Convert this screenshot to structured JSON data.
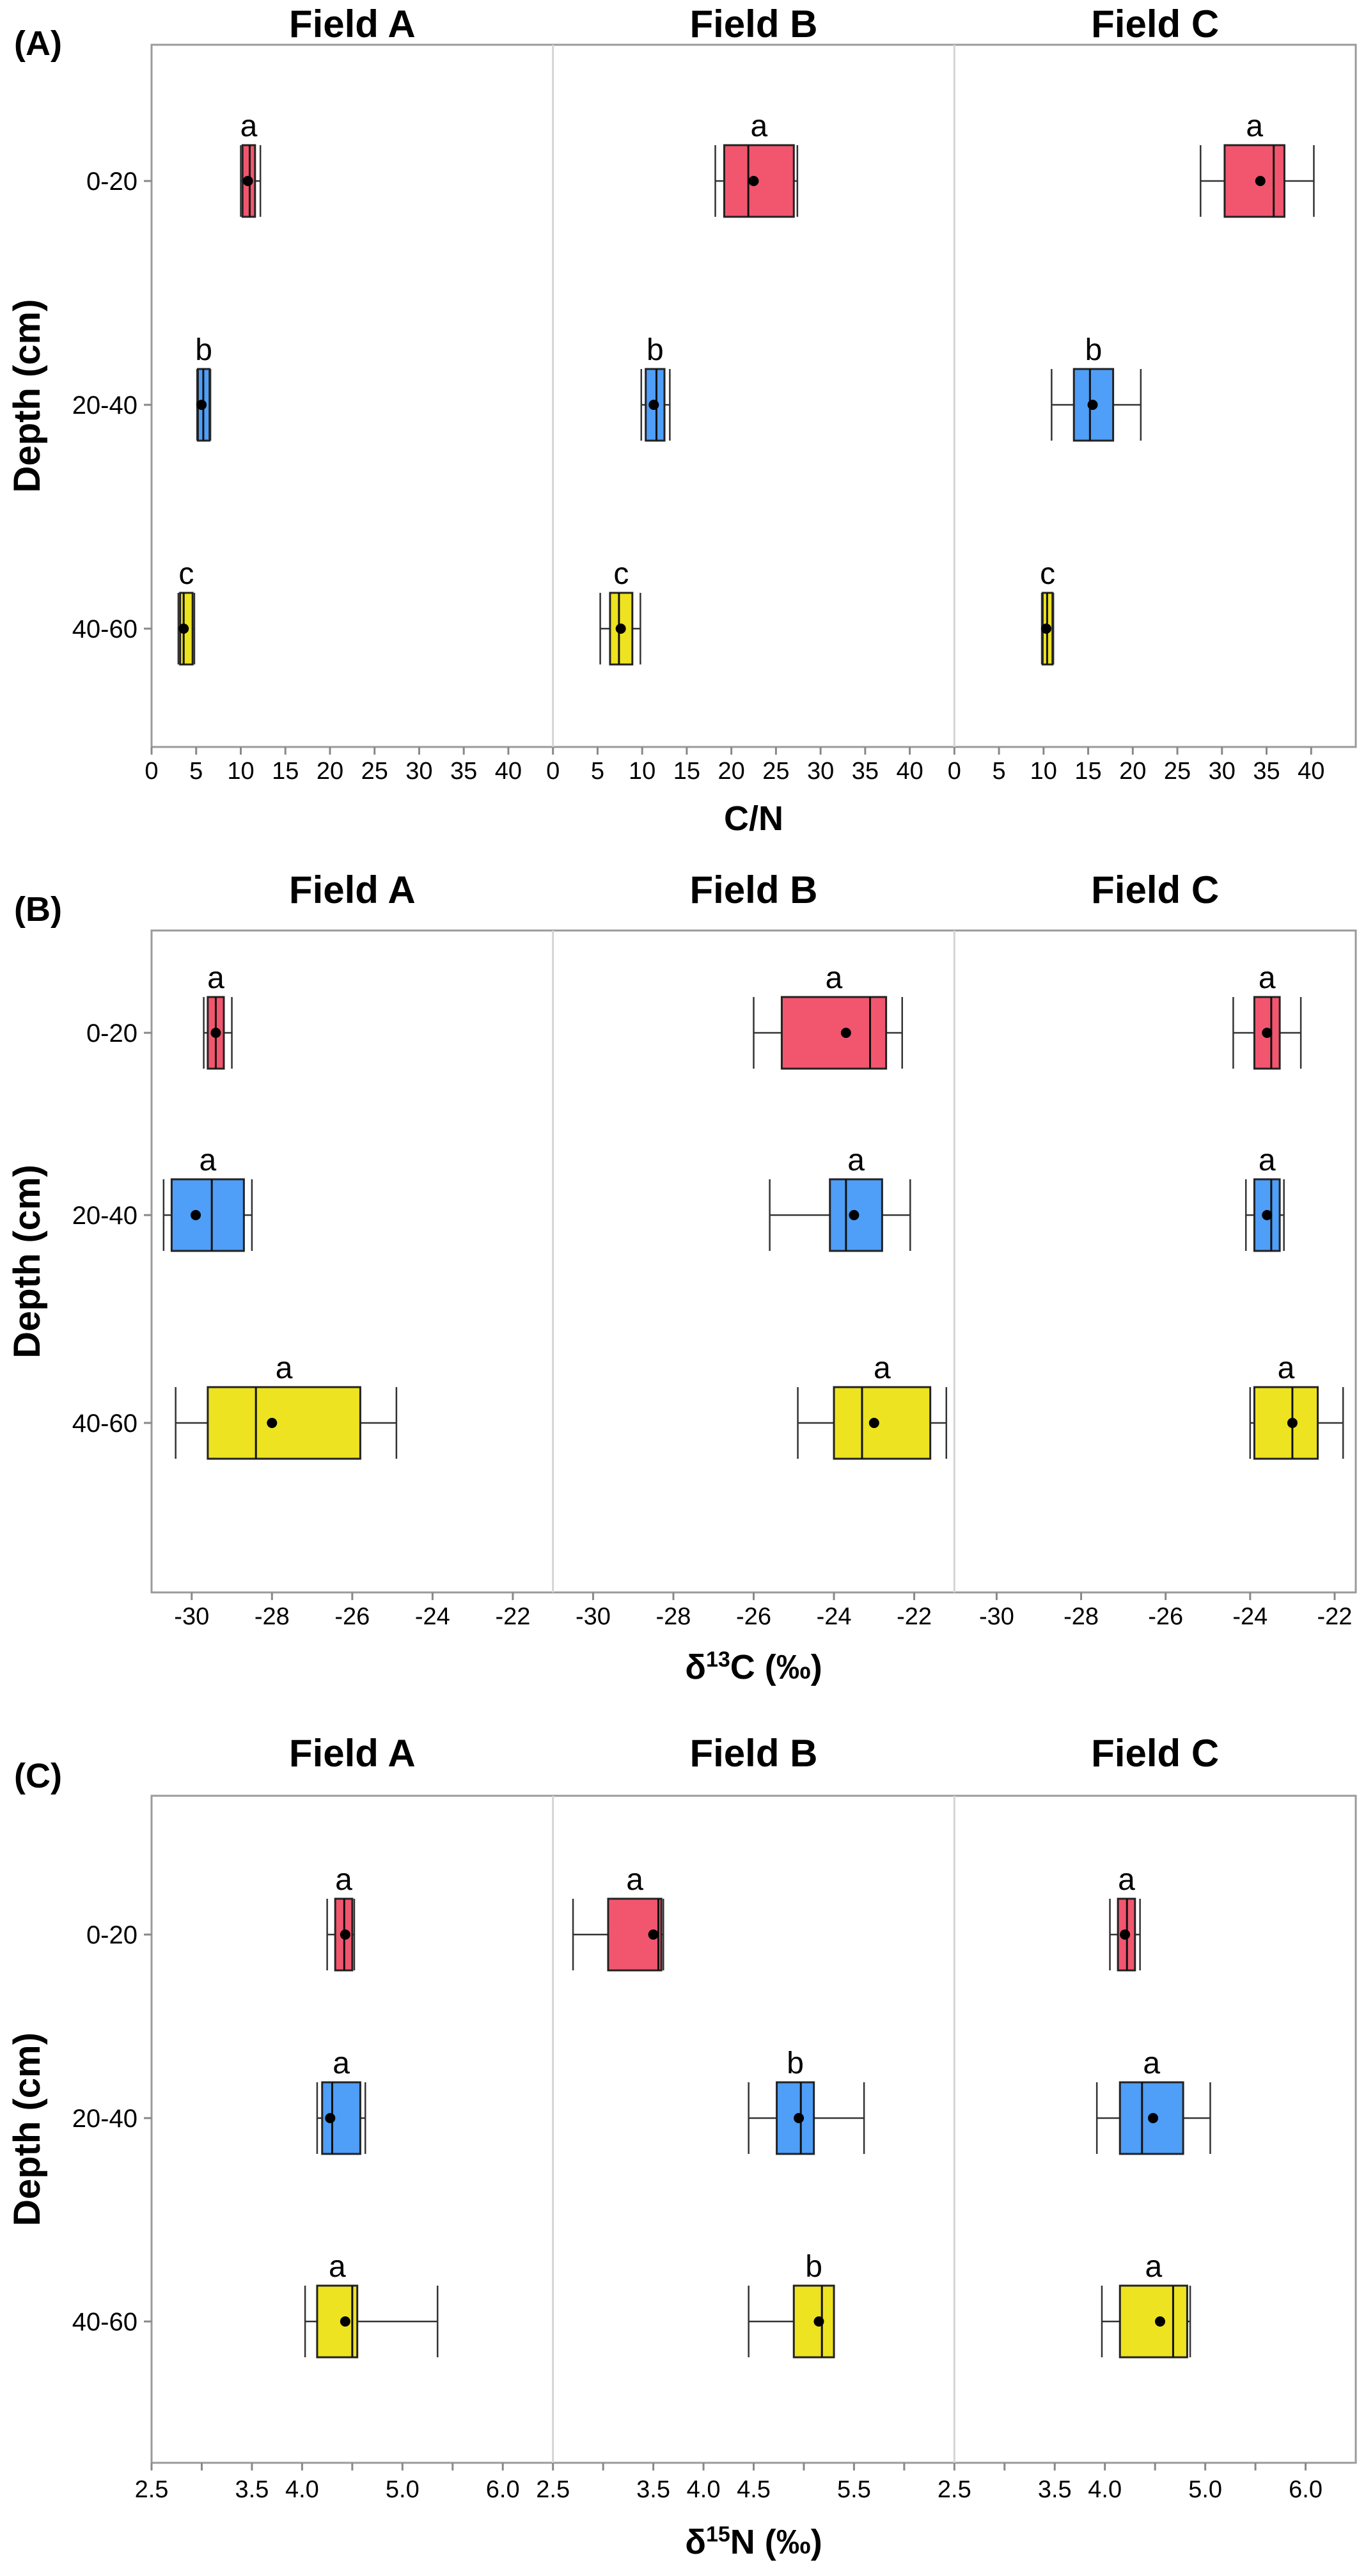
{
  "chart_data": [
    {
      "type": "boxplot",
      "panel_label": "(A)",
      "ylabel": "Depth (cm)",
      "xlabel": "C/N",
      "xlabel_parts": [
        {
          "t": "C/N",
          "sup": false
        }
      ],
      "categories": [
        "0-20",
        "20-40",
        "40-60"
      ],
      "colors": [
        "#f2566f",
        "#4f9ef7",
        "#ede321"
      ],
      "facets": [
        {
          "title": "Field A",
          "xlim": [
            0,
            45
          ],
          "ticks": [
            {
              "v": 0,
              "label": "0"
            },
            {
              "v": 5,
              "label": "5"
            },
            {
              "v": 10,
              "label": "10"
            },
            {
              "v": 15,
              "label": "15"
            },
            {
              "v": 20,
              "label": "20"
            },
            {
              "v": 25,
              "label": "25"
            },
            {
              "v": 30,
              "label": "30"
            },
            {
              "v": 35,
              "label": "35"
            },
            {
              "v": 40,
              "label": "40"
            }
          ],
          "boxes": [
            {
              "depth": "0-20",
              "min": 10.0,
              "q1": 10.2,
              "median": 11.0,
              "q3": 11.6,
              "max": 12.2,
              "mean": 10.8,
              "letter": "a"
            },
            {
              "depth": "20-40",
              "min": 5.1,
              "q1": 5.2,
              "median": 5.8,
              "q3": 6.5,
              "max": 6.6,
              "mean": 5.6,
              "letter": "b"
            },
            {
              "depth": "40-60",
              "min": 3.0,
              "q1": 3.2,
              "median": 3.6,
              "q3": 4.6,
              "max": 4.8,
              "mean": 3.6,
              "letter": "c"
            }
          ]
        },
        {
          "title": "Field B",
          "xlim": [
            0,
            45
          ],
          "ticks": [
            {
              "v": 0,
              "label": "0"
            },
            {
              "v": 5,
              "label": "5"
            },
            {
              "v": 10,
              "label": "10"
            },
            {
              "v": 15,
              "label": "15"
            },
            {
              "v": 20,
              "label": "20"
            },
            {
              "v": 25,
              "label": "25"
            },
            {
              "v": 30,
              "label": "30"
            },
            {
              "v": 35,
              "label": "35"
            },
            {
              "v": 40,
              "label": "40"
            }
          ],
          "boxes": [
            {
              "depth": "0-20",
              "min": 18.2,
              "q1": 19.2,
              "median": 21.9,
              "q3": 27.0,
              "max": 27.4,
              "mean": 22.5,
              "letter": "a"
            },
            {
              "depth": "20-40",
              "min": 9.9,
              "q1": 10.4,
              "median": 11.6,
              "q3": 12.5,
              "max": 13.1,
              "mean": 11.3,
              "letter": "b"
            },
            {
              "depth": "40-60",
              "min": 5.3,
              "q1": 6.4,
              "median": 7.4,
              "q3": 8.9,
              "max": 9.8,
              "mean": 7.6,
              "letter": "c"
            }
          ]
        },
        {
          "title": "Field C",
          "xlim": [
            0,
            45
          ],
          "ticks": [
            {
              "v": 0,
              "label": "0"
            },
            {
              "v": 5,
              "label": "5"
            },
            {
              "v": 10,
              "label": "10"
            },
            {
              "v": 15,
              "label": "15"
            },
            {
              "v": 20,
              "label": "20"
            },
            {
              "v": 25,
              "label": "25"
            },
            {
              "v": 30,
              "label": "30"
            },
            {
              "v": 35,
              "label": "35"
            },
            {
              "v": 40,
              "label": "40"
            }
          ],
          "boxes": [
            {
              "depth": "0-20",
              "min": 27.6,
              "q1": 30.3,
              "median": 35.8,
              "q3": 37.0,
              "max": 40.3,
              "mean": 34.3,
              "letter": "a"
            },
            {
              "depth": "20-40",
              "min": 10.9,
              "q1": 13.4,
              "median": 15.2,
              "q3": 17.8,
              "max": 20.9,
              "mean": 15.5,
              "letter": "b"
            },
            {
              "depth": "40-60",
              "min": 9.8,
              "q1": 9.9,
              "median": 10.4,
              "q3": 11.0,
              "max": 11.1,
              "mean": 10.3,
              "letter": "c"
            }
          ]
        }
      ]
    },
    {
      "type": "boxplot",
      "panel_label": "(B)",
      "ylabel": "Depth (cm)",
      "xlabel": "δ13C (‰)",
      "xlabel_parts": [
        {
          "t": "δ",
          "sup": false
        },
        {
          "t": "13",
          "sup": true
        },
        {
          "t": "C (‰)",
          "sup": false
        }
      ],
      "categories": [
        "0-20",
        "20-40",
        "40-60"
      ],
      "colors": [
        "#f2566f",
        "#4f9ef7",
        "#ede321"
      ],
      "facets": [
        {
          "title": "Field A",
          "xlim": [
            -31,
            -21
          ],
          "ticks": [
            {
              "v": -30,
              "label": "-30"
            },
            {
              "v": -28,
              "label": "-28"
            },
            {
              "v": -26,
              "label": "-26"
            },
            {
              "v": -24,
              "label": "-24"
            },
            {
              "v": -22,
              "label": "-22"
            }
          ],
          "boxes": [
            {
              "depth": "0-20",
              "min": -29.7,
              "q1": -29.6,
              "median": -29.4,
              "q3": -29.2,
              "max": -29.0,
              "mean": -29.4,
              "letter": "a"
            },
            {
              "depth": "20-40",
              "min": -30.7,
              "q1": -30.5,
              "median": -29.5,
              "q3": -28.7,
              "max": -28.5,
              "mean": -29.9,
              "letter": "a"
            },
            {
              "depth": "40-60",
              "min": -30.4,
              "q1": -29.6,
              "median": -28.4,
              "q3": -25.8,
              "max": -24.9,
              "mean": -28.0,
              "letter": "a"
            }
          ]
        },
        {
          "title": "Field B",
          "xlim": [
            -31,
            -21
          ],
          "ticks": [
            {
              "v": -30,
              "label": "-30"
            },
            {
              "v": -28,
              "label": "-28"
            },
            {
              "v": -26,
              "label": "-26"
            },
            {
              "v": -24,
              "label": "-24"
            },
            {
              "v": -22,
              "label": "-22"
            }
          ],
          "boxes": [
            {
              "depth": "0-20",
              "min": -26.0,
              "q1": -25.3,
              "median": -23.1,
              "q3": -22.7,
              "max": -22.3,
              "mean": -23.7,
              "letter": "a"
            },
            {
              "depth": "20-40",
              "min": -25.6,
              "q1": -24.1,
              "median": -23.7,
              "q3": -22.8,
              "max": -22.1,
              "mean": -23.5,
              "letter": "a"
            },
            {
              "depth": "40-60",
              "min": -24.9,
              "q1": -24.0,
              "median": -23.3,
              "q3": -21.6,
              "max": -21.2,
              "mean": -23.0,
              "letter": "a"
            }
          ]
        },
        {
          "title": "Field C",
          "xlim": [
            -31,
            -21.5
          ],
          "ticks": [
            {
              "v": -30,
              "label": "-30"
            },
            {
              "v": -28,
              "label": "-28"
            },
            {
              "v": -26,
              "label": "-26"
            },
            {
              "v": -24,
              "label": "-24"
            },
            {
              "v": -22,
              "label": "-22"
            }
          ],
          "boxes": [
            {
              "depth": "0-20",
              "min": -24.4,
              "q1": -23.9,
              "median": -23.5,
              "q3": -23.3,
              "max": -22.8,
              "mean": -23.6,
              "letter": "a"
            },
            {
              "depth": "20-40",
              "min": -24.1,
              "q1": -23.9,
              "median": -23.5,
              "q3": -23.3,
              "max": -23.2,
              "mean": -23.6,
              "letter": "a"
            },
            {
              "depth": "40-60",
              "min": -24.0,
              "q1": -23.9,
              "median": -23.0,
              "q3": -22.4,
              "max": -21.8,
              "mean": -23.0,
              "letter": "a"
            }
          ]
        }
      ]
    },
    {
      "type": "boxplot",
      "panel_label": "(C)",
      "ylabel": "Depth (cm)",
      "xlabel": "δ15N (‰)",
      "xlabel_parts": [
        {
          "t": "δ",
          "sup": false
        },
        {
          "t": "15",
          "sup": true
        },
        {
          "t": "N (‰)",
          "sup": false
        }
      ],
      "categories": [
        "0-20",
        "20-40",
        "40-60"
      ],
      "colors": [
        "#f2566f",
        "#4f9ef7",
        "#ede321"
      ],
      "facets": [
        {
          "title": "Field A",
          "xlim": [
            2.5,
            6.5
          ],
          "ticks": [
            {
              "v": 2.5,
              "label": "2.5"
            },
            {
              "v": 3.0,
              "label": ""
            },
            {
              "v": 3.5,
              "label": "3.5"
            },
            {
              "v": 4.0,
              "label": "4.0"
            },
            {
              "v": 4.5,
              "label": ""
            },
            {
              "v": 5.0,
              "label": "5.0"
            },
            {
              "v": 5.5,
              "label": ""
            },
            {
              "v": 6.0,
              "label": "6.0"
            }
          ],
          "boxes": [
            {
              "depth": "0-20",
              "min": 4.25,
              "q1": 4.33,
              "median": 4.42,
              "q3": 4.5,
              "max": 4.52,
              "mean": 4.43,
              "letter": "a"
            },
            {
              "depth": "20-40",
              "min": 4.15,
              "q1": 4.2,
              "median": 4.3,
              "q3": 4.58,
              "max": 4.63,
              "mean": 4.28,
              "letter": "a"
            },
            {
              "depth": "40-60",
              "min": 4.03,
              "q1": 4.15,
              "median": 4.5,
              "q3": 4.55,
              "max": 5.35,
              "mean": 4.43,
              "letter": "a"
            }
          ]
        },
        {
          "title": "Field B",
          "xlim": [
            2.5,
            6.5
          ],
          "ticks": [
            {
              "v": 2.5,
              "label": "2.5"
            },
            {
              "v": 3.0,
              "label": ""
            },
            {
              "v": 3.5,
              "label": "3.5"
            },
            {
              "v": 4.0,
              "label": "4.0"
            },
            {
              "v": 4.5,
              "label": "4.5"
            },
            {
              "v": 5.0,
              "label": ""
            },
            {
              "v": 5.5,
              "label": "5.5"
            },
            {
              "v": 6.0,
              "label": ""
            }
          ],
          "boxes": [
            {
              "depth": "0-20",
              "min": 2.7,
              "q1": 3.05,
              "median": 3.55,
              "q3": 3.58,
              "max": 3.6,
              "mean": 3.5,
              "letter": "a"
            },
            {
              "depth": "20-40",
              "min": 4.45,
              "q1": 4.73,
              "median": 4.97,
              "q3": 5.1,
              "max": 5.6,
              "mean": 4.95,
              "letter": "b"
            },
            {
              "depth": "40-60",
              "min": 4.45,
              "q1": 4.9,
              "median": 5.18,
              "q3": 5.3,
              "max": 5.3,
              "mean": 5.15,
              "letter": "b"
            }
          ]
        },
        {
          "title": "Field C",
          "xlim": [
            2.5,
            6.5
          ],
          "ticks": [
            {
              "v": 2.5,
              "label": "2.5"
            },
            {
              "v": 3.0,
              "label": ""
            },
            {
              "v": 3.5,
              "label": "3.5"
            },
            {
              "v": 4.0,
              "label": "4.0"
            },
            {
              "v": 4.5,
              "label": ""
            },
            {
              "v": 5.0,
              "label": "5.0"
            },
            {
              "v": 5.5,
              "label": ""
            },
            {
              "v": 6.0,
              "label": "6.0"
            }
          ],
          "boxes": [
            {
              "depth": "0-20",
              "min": 4.05,
              "q1": 4.13,
              "median": 4.22,
              "q3": 4.3,
              "max": 4.35,
              "mean": 4.2,
              "letter": "a"
            },
            {
              "depth": "20-40",
              "min": 3.92,
              "q1": 4.15,
              "median": 4.37,
              "q3": 4.78,
              "max": 5.05,
              "mean": 4.48,
              "letter": "a"
            },
            {
              "depth": "40-60",
              "min": 3.97,
              "q1": 4.15,
              "median": 4.68,
              "q3": 4.82,
              "max": 4.85,
              "mean": 4.55,
              "letter": "a"
            }
          ]
        }
      ]
    }
  ]
}
